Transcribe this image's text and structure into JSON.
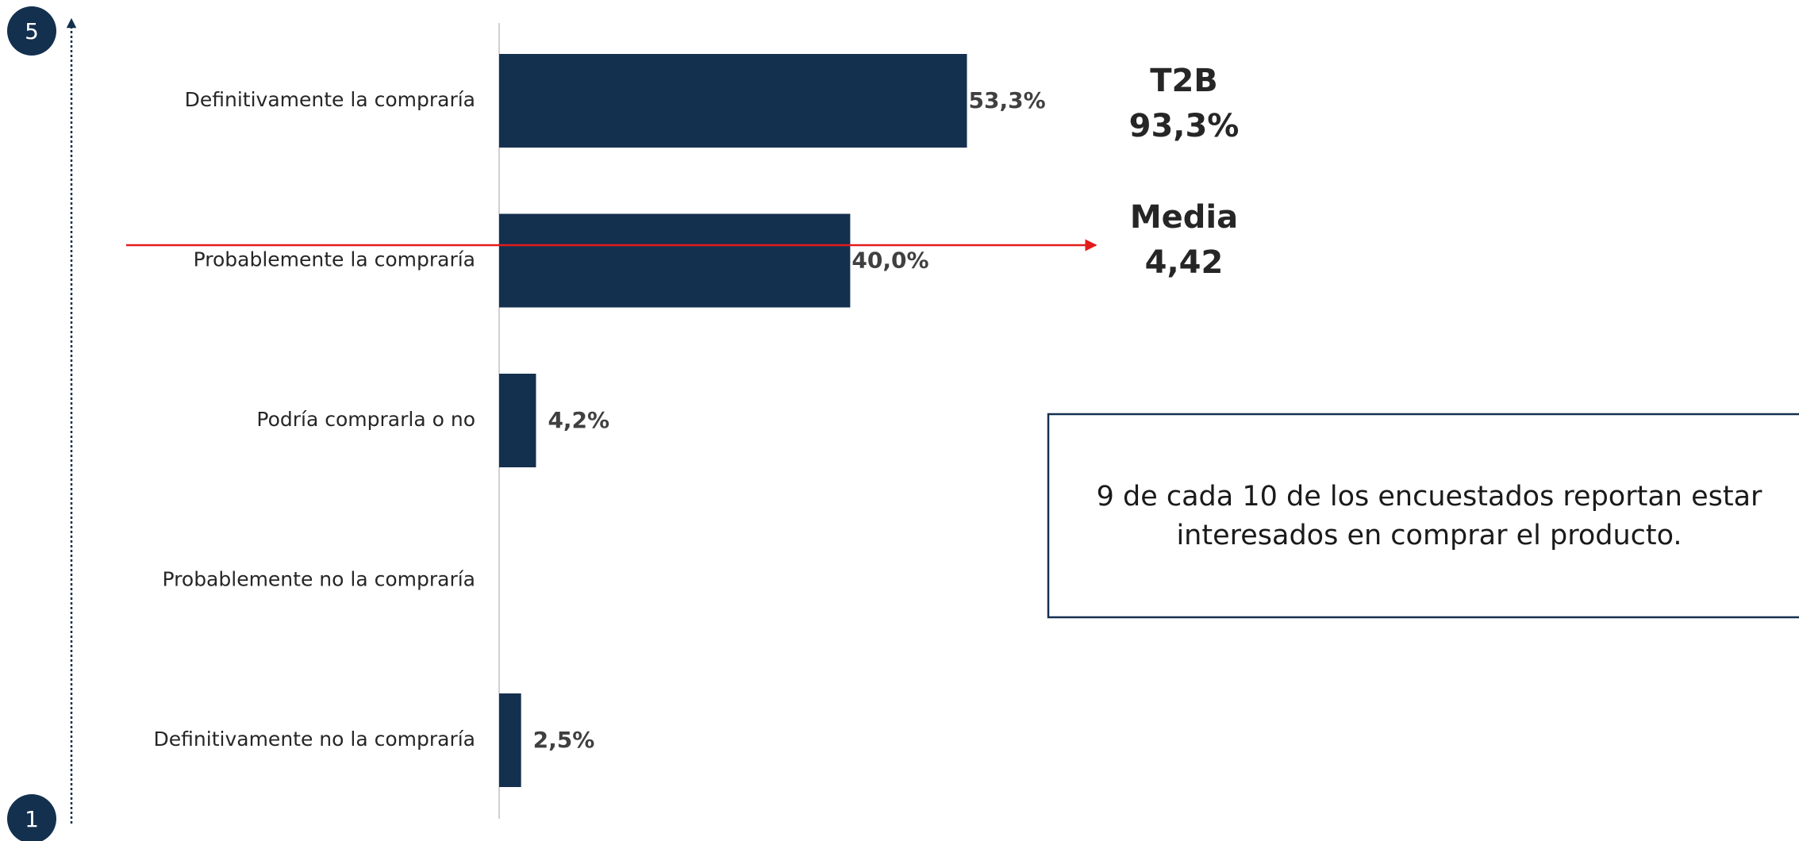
{
  "chart_data": {
    "type": "barh",
    "categories": [
      "Definitivamente la compraría",
      "Probablemente la compraría",
      "Podría comprarla o no",
      "Probablemente no la compraría",
      "Definitivamente no la compraría"
    ],
    "values": [
      53.3,
      40.0,
      4.2,
      0,
      2.5
    ],
    "value_labels": [
      "53,3%",
      "40,0%",
      "4,2%",
      null,
      "2,5%"
    ],
    "color": "#14304f",
    "scale_labels": {
      "top": "5",
      "bottom": "1"
    },
    "annotations": {
      "t2b": {
        "label": "T2B",
        "value": "93,3%"
      },
      "mean": {
        "label": "Media",
        "value": "4,42"
      },
      "note": [
        "9 de cada 10 de los encuestados reportan estar",
        "interesados en comprar el producto."
      ]
    }
  }
}
